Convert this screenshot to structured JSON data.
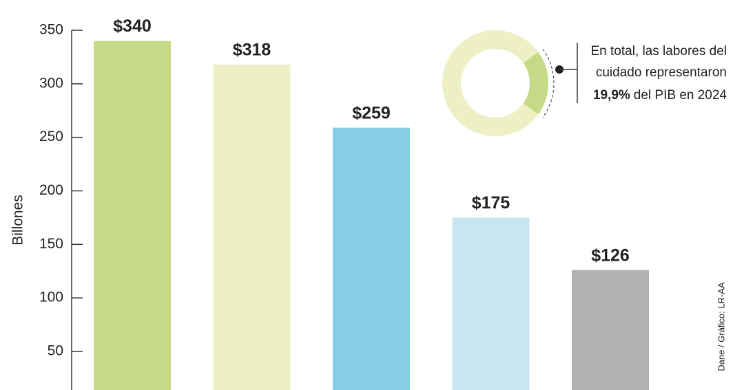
{
  "chart_data": [
    {
      "type": "bar",
      "y_label": "Billones",
      "categories": [
        null,
        null,
        null,
        null,
        null
      ],
      "values": [
        340,
        318,
        259,
        175,
        126
      ],
      "value_labels": [
        "$340",
        "$318",
        "$259",
        "$175",
        "$126"
      ],
      "colors": [
        "#c5d986",
        "#edf0c5",
        "#86cde6",
        "#c7e6f2",
        "#b1b1b1"
      ],
      "ylim": [
        14,
        350
      ],
      "yticks": [
        50,
        100,
        150,
        200,
        250,
        300,
        350
      ],
      "source": "Dane / Gráfico: LR-AA"
    },
    {
      "type": "pie",
      "values": [
        19.9
      ],
      "value_labels": [
        "19,9%"
      ],
      "colors": [
        "#c5d986"
      ],
      "rest_color": "#edf0c5",
      "annotation_lines": [
        "En total, las labores del",
        "cuidado representaron"
      ],
      "annotation_end": "del PIB en 2024"
    }
  ]
}
